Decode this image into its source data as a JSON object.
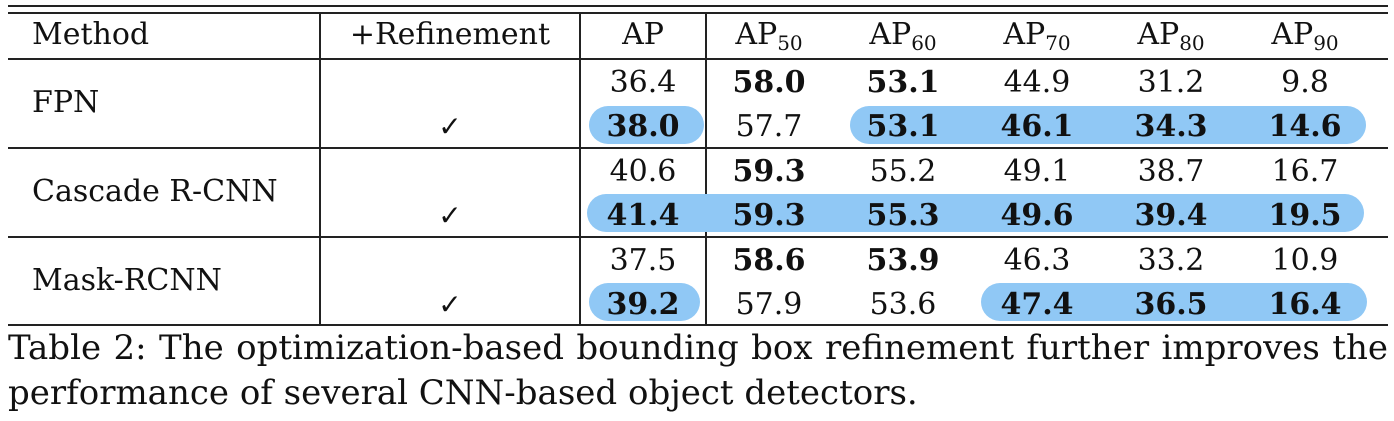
{
  "table": {
    "headers": {
      "method": "Method",
      "refinement": "+Refinement",
      "ap": "AP",
      "ap50": {
        "base": "AP",
        "sub": "50"
      },
      "ap60": {
        "base": "AP",
        "sub": "60"
      },
      "ap70": {
        "base": "AP",
        "sub": "70"
      },
      "ap80": {
        "base": "AP",
        "sub": "80"
      },
      "ap90": {
        "base": "AP",
        "sub": "90"
      }
    },
    "groups": [
      {
        "method": "FPN",
        "rows": [
          {
            "check": "",
            "values": [
              "36.4",
              "58.0",
              "53.1",
              "44.9",
              "31.2",
              "9.8"
            ],
            "bold": [
              false,
              true,
              true,
              false,
              false,
              false
            ]
          },
          {
            "check": "✓",
            "values": [
              "38.0",
              "57.7",
              "53.1",
              "46.1",
              "34.3",
              "14.6"
            ],
            "bold": [
              true,
              false,
              true,
              true,
              true,
              true
            ]
          }
        ]
      },
      {
        "method": "Cascade R-CNN",
        "rows": [
          {
            "check": "",
            "values": [
              "40.6",
              "59.3",
              "55.2",
              "49.1",
              "38.7",
              "16.7"
            ],
            "bold": [
              false,
              true,
              false,
              false,
              false,
              false
            ]
          },
          {
            "check": "✓",
            "values": [
              "41.4",
              "59.3",
              "55.3",
              "49.6",
              "39.4",
              "19.5"
            ],
            "bold": [
              true,
              true,
              true,
              true,
              true,
              true
            ]
          }
        ]
      },
      {
        "method": "Mask-RCNN",
        "rows": [
          {
            "check": "",
            "values": [
              "37.5",
              "58.6",
              "53.9",
              "46.3",
              "33.2",
              "10.9"
            ],
            "bold": [
              false,
              true,
              true,
              false,
              false,
              false
            ]
          },
          {
            "check": "✓",
            "values": [
              "39.2",
              "57.9",
              "53.6",
              "47.4",
              "36.5",
              "16.4"
            ],
            "bold": [
              true,
              false,
              false,
              true,
              true,
              true
            ]
          }
        ]
      }
    ]
  },
  "caption": "Table 2: The optimization-based bounding box refinement further improves the performance of several CNN-based object detectors.",
  "colors": {
    "highlight": "#90c8f5",
    "rule": "#222222"
  }
}
